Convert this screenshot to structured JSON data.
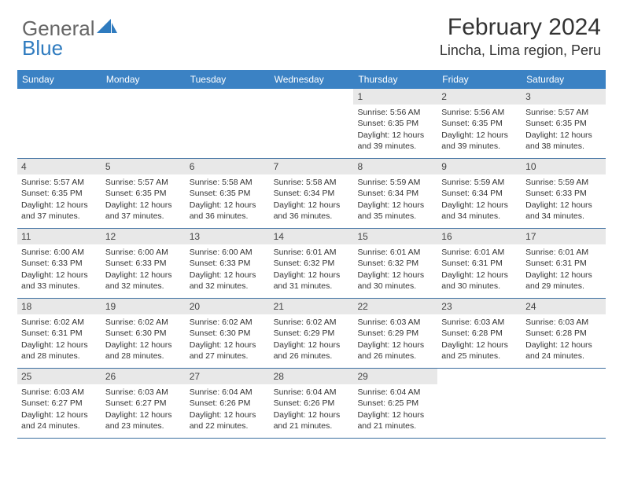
{
  "logo": {
    "word1": "General",
    "word2": "Blue",
    "shape_color": "#2f7bbf"
  },
  "header": {
    "month_title": "February 2024",
    "location": "Lincha, Lima region, Peru"
  },
  "colors": {
    "header_bg": "#3b82c4",
    "header_text": "#ffffff",
    "daynum_bg": "#e8e8e8",
    "row_border": "#3b6ea0",
    "body_text": "#333333"
  },
  "day_headers": [
    "Sunday",
    "Monday",
    "Tuesday",
    "Wednesday",
    "Thursday",
    "Friday",
    "Saturday"
  ],
  "weeks": [
    [
      null,
      null,
      null,
      null,
      {
        "n": "1",
        "sunrise": "5:56 AM",
        "sunset": "6:35 PM",
        "dl1": "12 hours",
        "dl2": "and 39 minutes."
      },
      {
        "n": "2",
        "sunrise": "5:56 AM",
        "sunset": "6:35 PM",
        "dl1": "12 hours",
        "dl2": "and 39 minutes."
      },
      {
        "n": "3",
        "sunrise": "5:57 AM",
        "sunset": "6:35 PM",
        "dl1": "12 hours",
        "dl2": "and 38 minutes."
      }
    ],
    [
      {
        "n": "4",
        "sunrise": "5:57 AM",
        "sunset": "6:35 PM",
        "dl1": "12 hours",
        "dl2": "and 37 minutes."
      },
      {
        "n": "5",
        "sunrise": "5:57 AM",
        "sunset": "6:35 PM",
        "dl1": "12 hours",
        "dl2": "and 37 minutes."
      },
      {
        "n": "6",
        "sunrise": "5:58 AM",
        "sunset": "6:35 PM",
        "dl1": "12 hours",
        "dl2": "and 36 minutes."
      },
      {
        "n": "7",
        "sunrise": "5:58 AM",
        "sunset": "6:34 PM",
        "dl1": "12 hours",
        "dl2": "and 36 minutes."
      },
      {
        "n": "8",
        "sunrise": "5:59 AM",
        "sunset": "6:34 PM",
        "dl1": "12 hours",
        "dl2": "and 35 minutes."
      },
      {
        "n": "9",
        "sunrise": "5:59 AM",
        "sunset": "6:34 PM",
        "dl1": "12 hours",
        "dl2": "and 34 minutes."
      },
      {
        "n": "10",
        "sunrise": "5:59 AM",
        "sunset": "6:33 PM",
        "dl1": "12 hours",
        "dl2": "and 34 minutes."
      }
    ],
    [
      {
        "n": "11",
        "sunrise": "6:00 AM",
        "sunset": "6:33 PM",
        "dl1": "12 hours",
        "dl2": "and 33 minutes."
      },
      {
        "n": "12",
        "sunrise": "6:00 AM",
        "sunset": "6:33 PM",
        "dl1": "12 hours",
        "dl2": "and 32 minutes."
      },
      {
        "n": "13",
        "sunrise": "6:00 AM",
        "sunset": "6:33 PM",
        "dl1": "12 hours",
        "dl2": "and 32 minutes."
      },
      {
        "n": "14",
        "sunrise": "6:01 AM",
        "sunset": "6:32 PM",
        "dl1": "12 hours",
        "dl2": "and 31 minutes."
      },
      {
        "n": "15",
        "sunrise": "6:01 AM",
        "sunset": "6:32 PM",
        "dl1": "12 hours",
        "dl2": "and 30 minutes."
      },
      {
        "n": "16",
        "sunrise": "6:01 AM",
        "sunset": "6:31 PM",
        "dl1": "12 hours",
        "dl2": "and 30 minutes."
      },
      {
        "n": "17",
        "sunrise": "6:01 AM",
        "sunset": "6:31 PM",
        "dl1": "12 hours",
        "dl2": "and 29 minutes."
      }
    ],
    [
      {
        "n": "18",
        "sunrise": "6:02 AM",
        "sunset": "6:31 PM",
        "dl1": "12 hours",
        "dl2": "and 28 minutes."
      },
      {
        "n": "19",
        "sunrise": "6:02 AM",
        "sunset": "6:30 PM",
        "dl1": "12 hours",
        "dl2": "and 28 minutes."
      },
      {
        "n": "20",
        "sunrise": "6:02 AM",
        "sunset": "6:30 PM",
        "dl1": "12 hours",
        "dl2": "and 27 minutes."
      },
      {
        "n": "21",
        "sunrise": "6:02 AM",
        "sunset": "6:29 PM",
        "dl1": "12 hours",
        "dl2": "and 26 minutes."
      },
      {
        "n": "22",
        "sunrise": "6:03 AM",
        "sunset": "6:29 PM",
        "dl1": "12 hours",
        "dl2": "and 26 minutes."
      },
      {
        "n": "23",
        "sunrise": "6:03 AM",
        "sunset": "6:28 PM",
        "dl1": "12 hours",
        "dl2": "and 25 minutes."
      },
      {
        "n": "24",
        "sunrise": "6:03 AM",
        "sunset": "6:28 PM",
        "dl1": "12 hours",
        "dl2": "and 24 minutes."
      }
    ],
    [
      {
        "n": "25",
        "sunrise": "6:03 AM",
        "sunset": "6:27 PM",
        "dl1": "12 hours",
        "dl2": "and 24 minutes."
      },
      {
        "n": "26",
        "sunrise": "6:03 AM",
        "sunset": "6:27 PM",
        "dl1": "12 hours",
        "dl2": "and 23 minutes."
      },
      {
        "n": "27",
        "sunrise": "6:04 AM",
        "sunset": "6:26 PM",
        "dl1": "12 hours",
        "dl2": "and 22 minutes."
      },
      {
        "n": "28",
        "sunrise": "6:04 AM",
        "sunset": "6:26 PM",
        "dl1": "12 hours",
        "dl2": "and 21 minutes."
      },
      {
        "n": "29",
        "sunrise": "6:04 AM",
        "sunset": "6:25 PM",
        "dl1": "12 hours",
        "dl2": "and 21 minutes."
      },
      null,
      null
    ]
  ],
  "labels": {
    "sunrise_prefix": "Sunrise: ",
    "sunset_prefix": "Sunset: ",
    "daylight_prefix": "Daylight: "
  }
}
